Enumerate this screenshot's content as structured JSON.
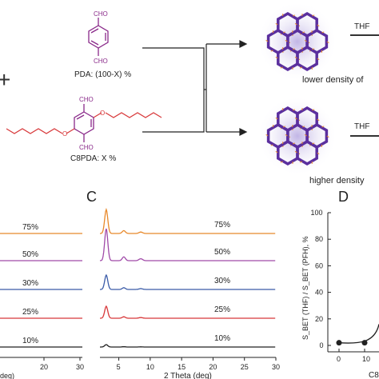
{
  "top": {
    "plus_sign": "+",
    "pda_label": "PDA: (100-X) %",
    "c8pda_label": "C8PDA: X %",
    "cho_top": "CHO",
    "cho_bottom": "CHO",
    "cho_c8_top": "CHO",
    "cho_c8_bottom": "CHO",
    "thf_top": "THF",
    "thf_bottom": "THF",
    "caption_upper": "lower density of",
    "caption_lower": "higher density"
  },
  "panel_b_partial": {
    "percent_labels": [
      "75%",
      "50%",
      "30%",
      "25%",
      "10%"
    ],
    "tick_labels": [
      "20",
      "30"
    ],
    "xlabel_fragment": "deg)"
  },
  "panel_c": {
    "letter": "C",
    "xlabel": "2 Theta (deg)",
    "tick_labels": [
      "5",
      "10",
      "15",
      "20",
      "25",
      "30"
    ]
  },
  "panel_d": {
    "letter": "D",
    "ylabel": "S_BET (THF) / S_BET (PFH), %",
    "y_ticks": [
      "0",
      "20",
      "40",
      "60",
      "80",
      "100"
    ],
    "x_ticks": [
      "0",
      "10"
    ],
    "xlabel_fragment": "C8"
  },
  "chart_data": [
    {
      "type": "line",
      "title": "",
      "xlabel": "2 Theta (deg)",
      "ylabel": "",
      "xlim": [
        2,
        30
      ],
      "series": [
        {
          "name": "75%",
          "color": "#e8892b"
        },
        {
          "name": "50%",
          "color": "#a04aa8"
        },
        {
          "name": "30%",
          "color": "#3a5ba8"
        },
        {
          "name": "25%",
          "color": "#d8383a"
        },
        {
          "name": "10%",
          "color": "#222222"
        }
      ],
      "peak_position_deg": 3,
      "grid": false
    },
    {
      "type": "scatter",
      "xlabel": "C8",
      "ylabel": "S_BET (THF) / S_BET (PFH), %",
      "ylim": [
        0,
        100
      ],
      "x": [
        0,
        10
      ],
      "y": [
        2,
        2
      ],
      "grid": false
    }
  ]
}
